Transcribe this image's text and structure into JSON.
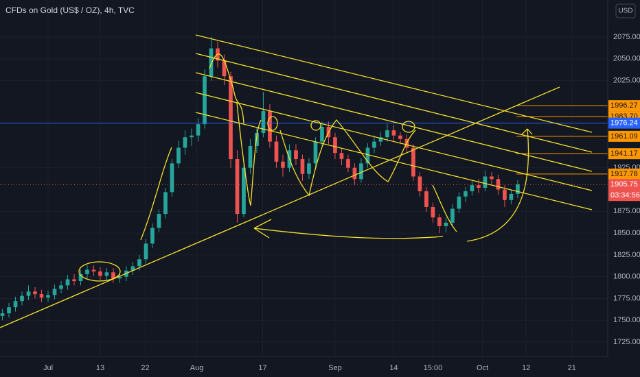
{
  "chart_data": {
    "type": "candlestick",
    "title": "CFDs on Gold (US$ / OZ), 4h, TVC",
    "currency": "USD",
    "x": [
      -7,
      -6,
      -5,
      -4,
      -3,
      -2,
      -1,
      0,
      1,
      2,
      3,
      4,
      5,
      6,
      7,
      8,
      9,
      10,
      11,
      12,
      13,
      14,
      15,
      16,
      17,
      18,
      19,
      20,
      21,
      22,
      23,
      24,
      25,
      26,
      27,
      28,
      29,
      30,
      31,
      32,
      33,
      34,
      35,
      36,
      37,
      38,
      39,
      40,
      41,
      42,
      43,
      44,
      45,
      46,
      47,
      48,
      49,
      50,
      51,
      52,
      53,
      54,
      55,
      56,
      57,
      58,
      59,
      60,
      61,
      62,
      63,
      64,
      65,
      66,
      67,
      68,
      69,
      70,
      71,
      72
    ],
    "open": [
      1755,
      1758,
      1765,
      1772,
      1778,
      1783,
      1780,
      1776,
      1779,
      1786,
      1790,
      1797,
      1795,
      1803,
      1808,
      1806,
      1801,
      1805,
      1798,
      1800,
      1807,
      1812,
      1820,
      1838,
      1856,
      1872,
      1897,
      1930,
      1948,
      1960,
      1962,
      1975,
      2030,
      2062,
      2048,
      2030,
      1935,
      1872,
      1925,
      1950,
      1965,
      1990,
      1955,
      1932,
      1925,
      1945,
      1935,
      1918,
      1930,
      1955,
      1972,
      1960,
      1942,
      1935,
      1925,
      1912,
      1930,
      1948,
      1955,
      1960,
      1968,
      1962,
      1958,
      1948,
      1915,
      1898,
      1880,
      1868,
      1858,
      1862,
      1878,
      1892,
      1898,
      1905,
      1902,
      1915,
      1912,
      1900,
      1888,
      1895
    ],
    "high": [
      1763,
      1770,
      1777,
      1783,
      1790,
      1788,
      1785,
      1784,
      1791,
      1795,
      1802,
      1803,
      1808,
      1813,
      1813,
      1811,
      1810,
      1810,
      1805,
      1812,
      1817,
      1825,
      1843,
      1861,
      1877,
      1902,
      1935,
      1956,
      1968,
      1970,
      1982,
      2038,
      2075,
      2070,
      2055,
      2035,
      1945,
      1930,
      1958,
      1972,
      2012,
      1998,
      1962,
      1940,
      1952,
      1952,
      1940,
      1936,
      1960,
      1978,
      1978,
      1965,
      1948,
      1940,
      1930,
      1936,
      1953,
      1962,
      1966,
      1975,
      1974,
      1966,
      1963,
      1952,
      1920,
      1903,
      1885,
      1872,
      1868,
      1883,
      1897,
      1903,
      1910,
      1912,
      1922,
      1920,
      1917,
      1905,
      1900,
      1911
    ],
    "low": [
      1750,
      1753,
      1760,
      1767,
      1773,
      1775,
      1771,
      1771,
      1774,
      1781,
      1785,
      1790,
      1790,
      1798,
      1801,
      1796,
      1796,
      1793,
      1793,
      1795,
      1802,
      1807,
      1815,
      1833,
      1851,
      1867,
      1892,
      1925,
      1940,
      1950,
      1955,
      1970,
      2025,
      2040,
      2020,
      1925,
      1862,
      1868,
      1918,
      1942,
      1960,
      1948,
      1925,
      1915,
      1920,
      1928,
      1910,
      1912,
      1925,
      1950,
      1952,
      1935,
      1928,
      1920,
      1905,
      1908,
      1925,
      1942,
      1950,
      1955,
      1956,
      1952,
      1942,
      1910,
      1892,
      1874,
      1862,
      1850,
      1851,
      1857,
      1873,
      1886,
      1893,
      1896,
      1898,
      1906,
      1894,
      1880,
      1883,
      1890
    ],
    "close": [
      1758,
      1765,
      1772,
      1778,
      1783,
      1780,
      1776,
      1779,
      1786,
      1790,
      1797,
      1795,
      1803,
      1808,
      1806,
      1801,
      1805,
      1798,
      1800,
      1807,
      1812,
      1820,
      1838,
      1856,
      1872,
      1897,
      1930,
      1948,
      1960,
      1962,
      1975,
      2030,
      2062,
      2048,
      2030,
      1935,
      1872,
      1925,
      1950,
      1965,
      1990,
      1955,
      1932,
      1925,
      1945,
      1935,
      1918,
      1930,
      1955,
      1972,
      1960,
      1942,
      1935,
      1925,
      1912,
      1930,
      1948,
      1955,
      1960,
      1968,
      1962,
      1958,
      1948,
      1915,
      1898,
      1880,
      1868,
      1858,
      1862,
      1878,
      1892,
      1898,
      1905,
      1902,
      1915,
      1912,
      1900,
      1888,
      1895,
      1906
    ],
    "up_color": "#26a69a",
    "down_color": "#ef5350",
    "xlim": [
      -7.37,
      85.8
    ],
    "xticks": [
      {
        "value": 0,
        "label": "Jul"
      },
      {
        "value": 8,
        "label": "13"
      },
      {
        "value": 14.9,
        "label": "22"
      },
      {
        "value": 22.8,
        "label": "Aug"
      },
      {
        "value": 32.9,
        "label": "17"
      },
      {
        "value": 44,
        "label": "Sep"
      },
      {
        "value": 53,
        "label": "14"
      },
      {
        "value": 59,
        "label": "15:00"
      },
      {
        "value": 66.6,
        "label": "Oct"
      },
      {
        "value": 73.3,
        "label": "12"
      },
      {
        "value": 80.3,
        "label": "21"
      }
    ],
    "ylim": [
      1708.5,
      2117.5
    ],
    "yticks": [
      {
        "value": 1725,
        "label": "1725.00"
      },
      {
        "value": 1750,
        "label": "1750.00"
      },
      {
        "value": 1775,
        "label": "1775.00"
      },
      {
        "value": 1800,
        "label": "1800.00"
      },
      {
        "value": 1825,
        "label": "1825.00"
      },
      {
        "value": 1850,
        "label": "1850.00"
      },
      {
        "value": 1875,
        "label": "1875.00"
      },
      {
        "value": 1925,
        "label": "1925.00"
      },
      {
        "value": 2025,
        "label": "2025.00"
      },
      {
        "value": 2050,
        "label": "2050.00"
      },
      {
        "value": 2075,
        "label": "2075.00"
      }
    ],
    "grid": true,
    "levels": [
      1996.27,
      {
        "value": 1983.7,
        "label": "1983.70"
      },
      1961.09,
      1941.17,
      1917.78
    ],
    "level_color": "#ff9800",
    "crosshair_price": 1976.24,
    "crosshair_color": "#2962ff",
    "last_price": 1905.75,
    "countdown": "03:34:56"
  }
}
